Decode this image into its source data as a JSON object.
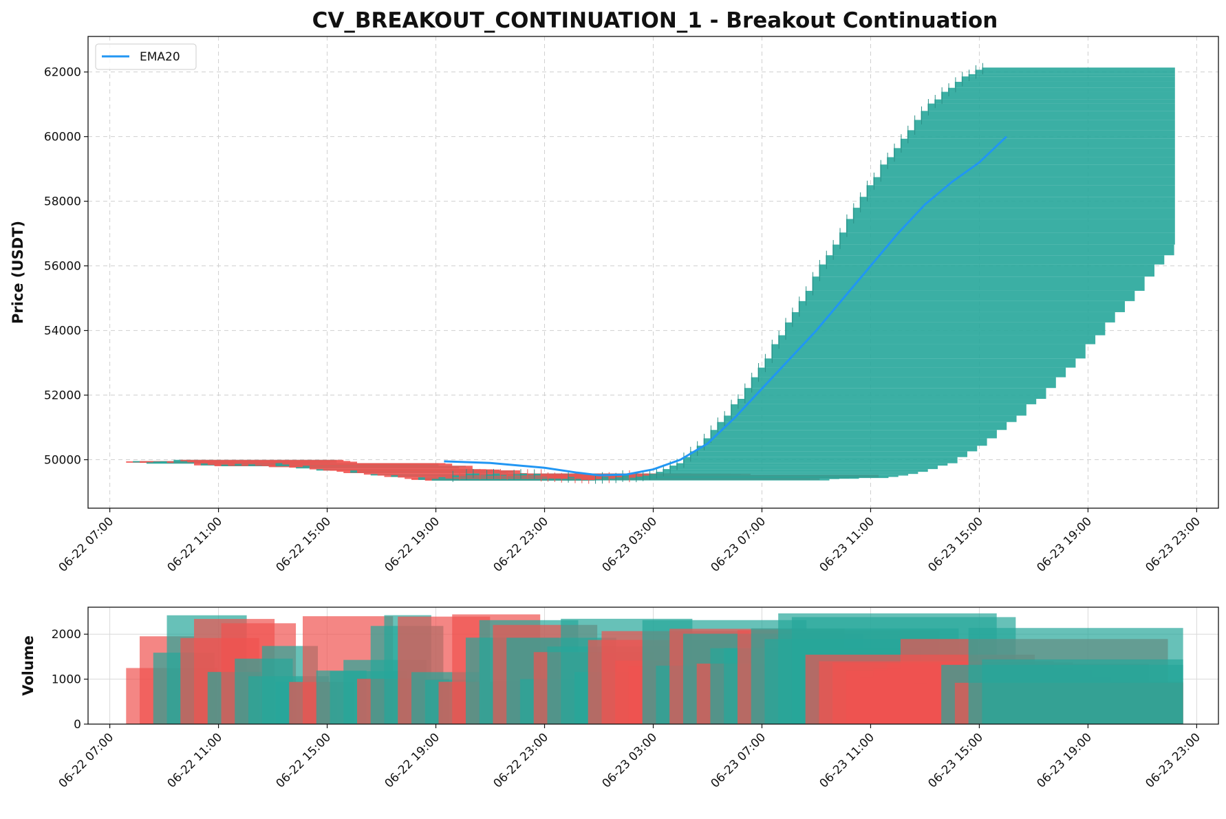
{
  "colors": {
    "up": "#26a69a",
    "down": "#ef5350",
    "ema": "#2196f3",
    "grid": "#cfcfcf"
  },
  "chart_data": [
    {
      "type": "candlestick",
      "title": "CV_BREAKOUT_CONTINUATION_1 - Breakout Continuation",
      "ylabel": "Price (USDT)",
      "ylim": [
        48500,
        63100
      ],
      "yticks": [
        50000,
        52000,
        54000,
        56000,
        58000,
        60000,
        62000
      ],
      "xlim_hours": [
        -0.8,
        40.8
      ],
      "xtick_labels": [
        "06-22 07:00",
        "06-22 11:00",
        "06-22 15:00",
        "06-22 19:00",
        "06-22 23:00",
        "06-23 03:00",
        "06-23 07:00",
        "06-23 11:00",
        "06-23 15:00",
        "06-23 19:00",
        "06-23 23:00"
      ],
      "grid": true,
      "legend": {
        "position": "top-left",
        "entries": [
          "EMA20"
        ]
      },
      "series": [
        {
          "name": "EMA20",
          "x_hours": [
            12.3,
            14.0,
            16.0,
            17.2,
            18.0,
            19.0,
            20.0,
            21.0,
            22.0,
            23.0,
            24.0,
            25.0,
            26.0,
            27.0,
            28.0,
            29.0,
            30.0,
            31.0,
            32.0,
            33.0
          ],
          "values": [
            49950,
            49900,
            49750,
            49600,
            49520,
            49540,
            49700,
            50000,
            50500,
            51300,
            52200,
            53100,
            54000,
            55000,
            56000,
            57000,
            57900,
            58600,
            59200,
            60000
          ]
        }
      ],
      "candles_summary": "Dense overlapping wide candles; consolidation near 49500-50000 from 06-22 07:30 to 06-23 02:00, breakout rising to ~62300 by 06-23 14:00, plateau to 06-23 21:00"
    },
    {
      "type": "bar",
      "ylabel": "Volume",
      "ylim": [
        0,
        2600
      ],
      "yticks": [
        0,
        1000,
        2000
      ],
      "xtick_labels": [
        "06-22 07:00",
        "06-22 11:00",
        "06-22 15:00",
        "06-22 19:00",
        "06-22 23:00",
        "06-23 03:00",
        "06-23 07:00",
        "06-23 11:00",
        "06-23 15:00",
        "06-23 19:00",
        "06-23 23:00"
      ],
      "grid": true
    }
  ]
}
